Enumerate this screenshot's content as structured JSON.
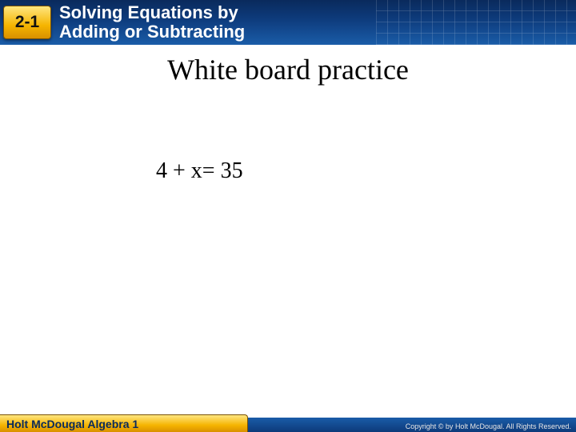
{
  "header": {
    "chapter": "2-1",
    "title_line1": "Solving Equations by",
    "title_line2": "Adding or Subtracting",
    "badge_gradient_top": "#ffe680",
    "badge_gradient_mid": "#f5b400",
    "badge_gradient_bot": "#d99000",
    "bar_gradient_top": "#0a2a5c",
    "bar_gradient_bot": "#1a5ca8",
    "chapter_fontsize": 21,
    "title_fontsize": 22
  },
  "content": {
    "heading": "White board practice",
    "equation": "4 + x= 35",
    "heading_fontsize": 36,
    "equation_fontsize": 28,
    "text_color": "#000000"
  },
  "footer": {
    "book": "Holt McDougal Algebra 1",
    "copyright": "Copyright © by Holt McDougal. All Rights Reserved.",
    "book_fontsize": 14,
    "copyright_fontsize": 9
  }
}
